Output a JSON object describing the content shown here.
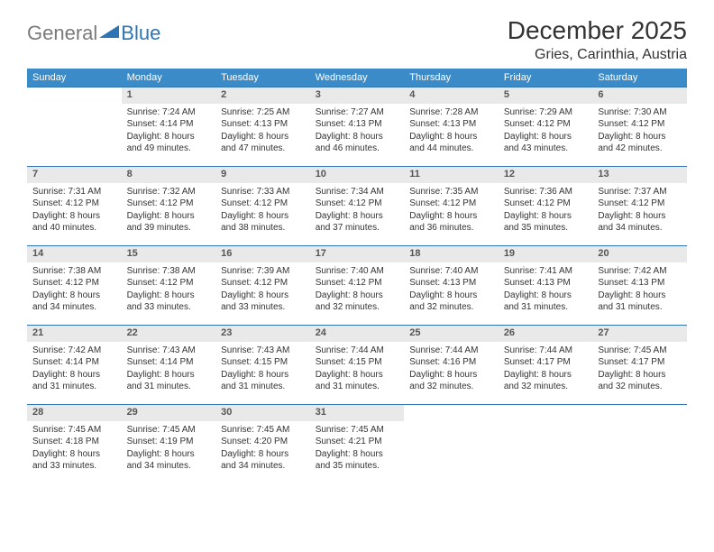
{
  "logo": {
    "general": "General",
    "blue": "Blue"
  },
  "title": "December 2025",
  "location": "Gries, Carinthia, Austria",
  "colors": {
    "header_bg": "#3b8bc9",
    "header_text": "#ffffff",
    "daynum_bg": "#e9e9e9",
    "rule": "#2e74b5",
    "logo_gray": "#7a7a7a",
    "logo_blue": "#2e74b5",
    "page_bg": "#ffffff"
  },
  "weekdays": [
    "Sunday",
    "Monday",
    "Tuesday",
    "Wednesday",
    "Thursday",
    "Friday",
    "Saturday"
  ],
  "weeks": [
    [
      null,
      {
        "n": "1",
        "sr": "Sunrise: 7:24 AM",
        "ss": "Sunset: 4:14 PM",
        "d1": "Daylight: 8 hours",
        "d2": "and 49 minutes."
      },
      {
        "n": "2",
        "sr": "Sunrise: 7:25 AM",
        "ss": "Sunset: 4:13 PM",
        "d1": "Daylight: 8 hours",
        "d2": "and 47 minutes."
      },
      {
        "n": "3",
        "sr": "Sunrise: 7:27 AM",
        "ss": "Sunset: 4:13 PM",
        "d1": "Daylight: 8 hours",
        "d2": "and 46 minutes."
      },
      {
        "n": "4",
        "sr": "Sunrise: 7:28 AM",
        "ss": "Sunset: 4:13 PM",
        "d1": "Daylight: 8 hours",
        "d2": "and 44 minutes."
      },
      {
        "n": "5",
        "sr": "Sunrise: 7:29 AM",
        "ss": "Sunset: 4:12 PM",
        "d1": "Daylight: 8 hours",
        "d2": "and 43 minutes."
      },
      {
        "n": "6",
        "sr": "Sunrise: 7:30 AM",
        "ss": "Sunset: 4:12 PM",
        "d1": "Daylight: 8 hours",
        "d2": "and 42 minutes."
      }
    ],
    [
      {
        "n": "7",
        "sr": "Sunrise: 7:31 AM",
        "ss": "Sunset: 4:12 PM",
        "d1": "Daylight: 8 hours",
        "d2": "and 40 minutes."
      },
      {
        "n": "8",
        "sr": "Sunrise: 7:32 AM",
        "ss": "Sunset: 4:12 PM",
        "d1": "Daylight: 8 hours",
        "d2": "and 39 minutes."
      },
      {
        "n": "9",
        "sr": "Sunrise: 7:33 AM",
        "ss": "Sunset: 4:12 PM",
        "d1": "Daylight: 8 hours",
        "d2": "and 38 minutes."
      },
      {
        "n": "10",
        "sr": "Sunrise: 7:34 AM",
        "ss": "Sunset: 4:12 PM",
        "d1": "Daylight: 8 hours",
        "d2": "and 37 minutes."
      },
      {
        "n": "11",
        "sr": "Sunrise: 7:35 AM",
        "ss": "Sunset: 4:12 PM",
        "d1": "Daylight: 8 hours",
        "d2": "and 36 minutes."
      },
      {
        "n": "12",
        "sr": "Sunrise: 7:36 AM",
        "ss": "Sunset: 4:12 PM",
        "d1": "Daylight: 8 hours",
        "d2": "and 35 minutes."
      },
      {
        "n": "13",
        "sr": "Sunrise: 7:37 AM",
        "ss": "Sunset: 4:12 PM",
        "d1": "Daylight: 8 hours",
        "d2": "and 34 minutes."
      }
    ],
    [
      {
        "n": "14",
        "sr": "Sunrise: 7:38 AM",
        "ss": "Sunset: 4:12 PM",
        "d1": "Daylight: 8 hours",
        "d2": "and 34 minutes."
      },
      {
        "n": "15",
        "sr": "Sunrise: 7:38 AM",
        "ss": "Sunset: 4:12 PM",
        "d1": "Daylight: 8 hours",
        "d2": "and 33 minutes."
      },
      {
        "n": "16",
        "sr": "Sunrise: 7:39 AM",
        "ss": "Sunset: 4:12 PM",
        "d1": "Daylight: 8 hours",
        "d2": "and 33 minutes."
      },
      {
        "n": "17",
        "sr": "Sunrise: 7:40 AM",
        "ss": "Sunset: 4:12 PM",
        "d1": "Daylight: 8 hours",
        "d2": "and 32 minutes."
      },
      {
        "n": "18",
        "sr": "Sunrise: 7:40 AM",
        "ss": "Sunset: 4:13 PM",
        "d1": "Daylight: 8 hours",
        "d2": "and 32 minutes."
      },
      {
        "n": "19",
        "sr": "Sunrise: 7:41 AM",
        "ss": "Sunset: 4:13 PM",
        "d1": "Daylight: 8 hours",
        "d2": "and 31 minutes."
      },
      {
        "n": "20",
        "sr": "Sunrise: 7:42 AM",
        "ss": "Sunset: 4:13 PM",
        "d1": "Daylight: 8 hours",
        "d2": "and 31 minutes."
      }
    ],
    [
      {
        "n": "21",
        "sr": "Sunrise: 7:42 AM",
        "ss": "Sunset: 4:14 PM",
        "d1": "Daylight: 8 hours",
        "d2": "and 31 minutes."
      },
      {
        "n": "22",
        "sr": "Sunrise: 7:43 AM",
        "ss": "Sunset: 4:14 PM",
        "d1": "Daylight: 8 hours",
        "d2": "and 31 minutes."
      },
      {
        "n": "23",
        "sr": "Sunrise: 7:43 AM",
        "ss": "Sunset: 4:15 PM",
        "d1": "Daylight: 8 hours",
        "d2": "and 31 minutes."
      },
      {
        "n": "24",
        "sr": "Sunrise: 7:44 AM",
        "ss": "Sunset: 4:15 PM",
        "d1": "Daylight: 8 hours",
        "d2": "and 31 minutes."
      },
      {
        "n": "25",
        "sr": "Sunrise: 7:44 AM",
        "ss": "Sunset: 4:16 PM",
        "d1": "Daylight: 8 hours",
        "d2": "and 32 minutes."
      },
      {
        "n": "26",
        "sr": "Sunrise: 7:44 AM",
        "ss": "Sunset: 4:17 PM",
        "d1": "Daylight: 8 hours",
        "d2": "and 32 minutes."
      },
      {
        "n": "27",
        "sr": "Sunrise: 7:45 AM",
        "ss": "Sunset: 4:17 PM",
        "d1": "Daylight: 8 hours",
        "d2": "and 32 minutes."
      }
    ],
    [
      {
        "n": "28",
        "sr": "Sunrise: 7:45 AM",
        "ss": "Sunset: 4:18 PM",
        "d1": "Daylight: 8 hours",
        "d2": "and 33 minutes."
      },
      {
        "n": "29",
        "sr": "Sunrise: 7:45 AM",
        "ss": "Sunset: 4:19 PM",
        "d1": "Daylight: 8 hours",
        "d2": "and 34 minutes."
      },
      {
        "n": "30",
        "sr": "Sunrise: 7:45 AM",
        "ss": "Sunset: 4:20 PM",
        "d1": "Daylight: 8 hours",
        "d2": "and 34 minutes."
      },
      {
        "n": "31",
        "sr": "Sunrise: 7:45 AM",
        "ss": "Sunset: 4:21 PM",
        "d1": "Daylight: 8 hours",
        "d2": "and 35 minutes."
      },
      null,
      null,
      null
    ]
  ]
}
